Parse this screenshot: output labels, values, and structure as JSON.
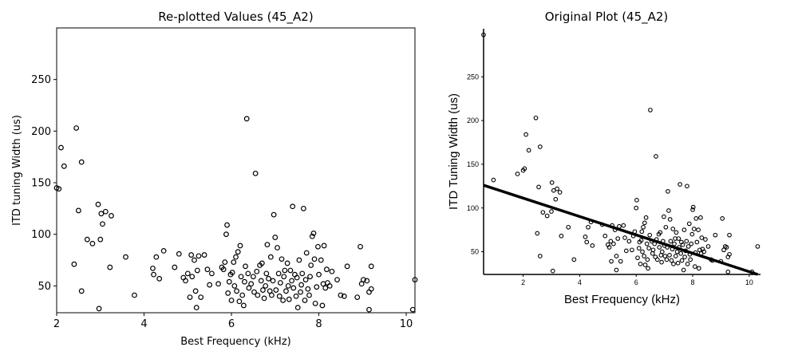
{
  "charts": {
    "left": {
      "title": "Re-plotted Values (45_A2)"
    },
    "right": {
      "title": "Original Plot (45_A2)"
    }
  },
  "chart_data": [
    {
      "type": "scatter",
      "title": "Re-plotted Values (45_A2)",
      "xlabel": "Best Frequency (kHz)",
      "ylabel": "ITD tuning Width (us)",
      "xlim": [
        2.0,
        10.2
      ],
      "ylim": [
        24,
        300
      ],
      "xticks": [
        2,
        4,
        6,
        8,
        10
      ],
      "yticks": [
        50,
        100,
        150,
        200,
        250
      ],
      "grid": false,
      "marker": "open-circle",
      "points": [
        [
          2.0,
          145
        ],
        [
          2.05,
          144
        ],
        [
          2.1,
          184
        ],
        [
          2.17,
          166
        ],
        [
          2.4,
          71
        ],
        [
          2.45,
          203
        ],
        [
          2.5,
          123
        ],
        [
          2.57,
          170
        ],
        [
          2.57,
          45
        ],
        [
          2.7,
          95
        ],
        [
          2.82,
          91
        ],
        [
          2.95,
          129
        ],
        [
          2.97,
          28
        ],
        [
          3.0,
          95
        ],
        [
          3.02,
          120
        ],
        [
          3.05,
          110
        ],
        [
          3.12,
          122
        ],
        [
          3.22,
          68
        ],
        [
          3.25,
          118
        ],
        [
          3.58,
          78
        ],
        [
          3.78,
          41
        ],
        [
          4.2,
          67
        ],
        [
          4.22,
          61
        ],
        [
          4.28,
          78
        ],
        [
          4.35,
          57
        ],
        [
          4.45,
          84
        ],
        [
          4.7,
          68
        ],
        [
          4.8,
          81
        ],
        [
          4.9,
          58
        ],
        [
          4.95,
          55
        ],
        [
          5.0,
          62
        ],
        [
          5.05,
          39
        ],
        [
          5.08,
          80
        ],
        [
          5.1,
          59
        ],
        [
          5.15,
          75
        ],
        [
          5.18,
          45
        ],
        [
          5.2,
          29
        ],
        [
          5.22,
          65
        ],
        [
          5.25,
          79
        ],
        [
          5.3,
          39
        ],
        [
          5.38,
          80
        ],
        [
          5.45,
          66
        ],
        [
          5.5,
          51
        ],
        [
          5.55,
          62
        ],
        [
          5.7,
          52
        ],
        [
          5.78,
          68
        ],
        [
          5.82,
          66
        ],
        [
          5.85,
          73
        ],
        [
          5.88,
          100
        ],
        [
          5.9,
          109
        ],
        [
          5.92,
          43
        ],
        [
          5.95,
          54
        ],
        [
          5.98,
          61
        ],
        [
          6.0,
          36
        ],
        [
          6.02,
          63
        ],
        [
          6.05,
          73
        ],
        [
          6.07,
          50
        ],
        [
          6.1,
          78
        ],
        [
          6.12,
          45
        ],
        [
          6.15,
          83
        ],
        [
          6.18,
          35
        ],
        [
          6.2,
          89
        ],
        [
          6.22,
          59
        ],
        [
          6.25,
          41
        ],
        [
          6.28,
          31
        ],
        [
          6.3,
          54
        ],
        [
          6.32,
          69
        ],
        [
          6.35,
          212
        ],
        [
          6.38,
          62
        ],
        [
          6.4,
          48
        ],
        [
          6.45,
          52
        ],
        [
          6.5,
          59
        ],
        [
          6.52,
          44
        ],
        [
          6.55,
          159
        ],
        [
          6.58,
          64
        ],
        [
          6.6,
          41
        ],
        [
          6.65,
          70
        ],
        [
          6.68,
          55
        ],
        [
          6.7,
          72
        ],
        [
          6.72,
          46
        ],
        [
          6.75,
          38
        ],
        [
          6.78,
          50
        ],
        [
          6.8,
          62
        ],
        [
          6.82,
          90
        ],
        [
          6.85,
          57
        ],
        [
          6.88,
          45
        ],
        [
          6.9,
          78
        ],
        [
          6.92,
          41
        ],
        [
          6.95,
          55
        ],
        [
          6.97,
          119
        ],
        [
          7.0,
          97
        ],
        [
          7.02,
          46
        ],
        [
          7.05,
          87
        ],
        [
          7.08,
          62
        ],
        [
          7.1,
          40
        ],
        [
          7.12,
          53
        ],
        [
          7.15,
          76
        ],
        [
          7.18,
          36
        ],
        [
          7.2,
          59
        ],
        [
          7.22,
          65
        ],
        [
          7.25,
          45
        ],
        [
          7.28,
          72
        ],
        [
          7.3,
          50
        ],
        [
          7.32,
          37
        ],
        [
          7.35,
          65
        ],
        [
          7.38,
          55
        ],
        [
          7.4,
          127
        ],
        [
          7.42,
          48
        ],
        [
          7.45,
          61
        ],
        [
          7.48,
          40
        ],
        [
          7.5,
          58
        ],
        [
          7.52,
          29
        ],
        [
          7.55,
          75
        ],
        [
          7.58,
          44
        ],
        [
          7.6,
          51
        ],
        [
          7.62,
          62
        ],
        [
          7.65,
          125
        ],
        [
          7.68,
          36
        ],
        [
          7.7,
          56
        ],
        [
          7.72,
          82
        ],
        [
          7.75,
          47
        ],
        [
          7.78,
          41
        ],
        [
          7.8,
          59
        ],
        [
          7.82,
          70
        ],
        [
          7.85,
          98
        ],
        [
          7.88,
          101
        ],
        [
          7.9,
          76
        ],
        [
          7.92,
          33
        ],
        [
          7.95,
          49
        ],
        [
          7.98,
          88
        ],
        [
          8.0,
          61
        ],
        [
          8.05,
          75
        ],
        [
          8.08,
          31
        ],
        [
          8.1,
          52
        ],
        [
          8.12,
          89
        ],
        [
          8.15,
          48
        ],
        [
          8.18,
          66
        ],
        [
          8.2,
          53
        ],
        [
          8.25,
          50
        ],
        [
          8.3,
          64
        ],
        [
          8.42,
          56
        ],
        [
          8.5,
          41
        ],
        [
          8.58,
          40
        ],
        [
          8.65,
          69
        ],
        [
          8.88,
          39
        ],
        [
          8.95,
          88
        ],
        [
          8.98,
          52
        ],
        [
          9.02,
          56
        ],
        [
          9.1,
          55
        ],
        [
          9.15,
          27
        ],
        [
          9.15,
          44
        ],
        [
          9.2,
          69
        ],
        [
          9.2,
          47
        ],
        [
          10.15,
          27
        ],
        [
          10.2,
          56
        ]
      ]
    },
    {
      "type": "scatter",
      "title": "Original Plot (45_A2)",
      "xlabel": "Best Frequency (kHz)",
      "ylabel": "ITD Tuning Width (us)",
      "xlim": [
        0.6,
        10.4
      ],
      "ylim": [
        24,
        305
      ],
      "xticks": [
        2,
        4,
        6,
        8,
        10
      ],
      "yticks": [
        50,
        100,
        150,
        200,
        250
      ],
      "grid": false,
      "marker": "open-circle",
      "fit_line": {
        "x": [
          0.6,
          10.3
        ],
        "y": [
          126,
          24
        ]
      },
      "points": [
        [
          0.6,
          298
        ],
        [
          0.95,
          132
        ],
        [
          1.8,
          139
        ],
        [
          2.0,
          143
        ],
        [
          2.05,
          145
        ],
        [
          2.1,
          184
        ],
        [
          2.2,
          166
        ],
        [
          2.45,
          203
        ],
        [
          2.5,
          71
        ],
        [
          2.55,
          124
        ],
        [
          2.6,
          45
        ],
        [
          2.6,
          170
        ],
        [
          2.7,
          95
        ],
        [
          2.85,
          91
        ],
        [
          3.0,
          96
        ],
        [
          3.02,
          129
        ],
        [
          3.05,
          28
        ],
        [
          3.08,
          120
        ],
        [
          3.15,
          110
        ],
        [
          3.2,
          122
        ],
        [
          3.3,
          118
        ],
        [
          3.35,
          68
        ],
        [
          3.6,
          78
        ],
        [
          3.8,
          41
        ],
        [
          4.2,
          67
        ],
        [
          4.25,
          61
        ],
        [
          4.3,
          78
        ],
        [
          4.4,
          84
        ],
        [
          4.45,
          57
        ],
        [
          4.8,
          81
        ],
        [
          4.9,
          68
        ],
        [
          5.0,
          58
        ],
        [
          5.05,
          55
        ],
        [
          5.1,
          62
        ],
        [
          5.12,
          39
        ],
        [
          5.15,
          80
        ],
        [
          5.2,
          59
        ],
        [
          5.25,
          75
        ],
        [
          5.3,
          45
        ],
        [
          5.3,
          29
        ],
        [
          5.35,
          65
        ],
        [
          5.4,
          79
        ],
        [
          5.45,
          39
        ],
        [
          5.55,
          80
        ],
        [
          5.6,
          66
        ],
        [
          5.65,
          51
        ],
        [
          5.75,
          62
        ],
        [
          5.85,
          52
        ],
        [
          5.9,
          68
        ],
        [
          5.95,
          73
        ],
        [
          6.0,
          100
        ],
        [
          6.02,
          109
        ],
        [
          6.05,
          43
        ],
        [
          6.1,
          54
        ],
        [
          6.12,
          61
        ],
        [
          6.15,
          36
        ],
        [
          6.18,
          63
        ],
        [
          6.2,
          73
        ],
        [
          6.22,
          50
        ],
        [
          6.25,
          78
        ],
        [
          6.28,
          45
        ],
        [
          6.3,
          83
        ],
        [
          6.32,
          35
        ],
        [
          6.35,
          89
        ],
        [
          6.38,
          59
        ],
        [
          6.4,
          41
        ],
        [
          6.42,
          31
        ],
        [
          6.45,
          54
        ],
        [
          6.48,
          69
        ],
        [
          6.5,
          212
        ],
        [
          6.55,
          62
        ],
        [
          6.58,
          48
        ],
        [
          6.6,
          52
        ],
        [
          6.65,
          59
        ],
        [
          6.68,
          44
        ],
        [
          6.7,
          159
        ],
        [
          6.72,
          64
        ],
        [
          6.75,
          41
        ],
        [
          6.8,
          70
        ],
        [
          6.82,
          55
        ],
        [
          6.85,
          72
        ],
        [
          6.88,
          46
        ],
        [
          6.9,
          38
        ],
        [
          6.92,
          50
        ],
        [
          6.95,
          62
        ],
        [
          6.98,
          90
        ],
        [
          7.0,
          57
        ],
        [
          7.02,
          45
        ],
        [
          7.05,
          78
        ],
        [
          7.08,
          41
        ],
        [
          7.1,
          55
        ],
        [
          7.12,
          119
        ],
        [
          7.15,
          97
        ],
        [
          7.18,
          46
        ],
        [
          7.2,
          87
        ],
        [
          7.22,
          62
        ],
        [
          7.25,
          40
        ],
        [
          7.28,
          53
        ],
        [
          7.3,
          76
        ],
        [
          7.32,
          36
        ],
        [
          7.35,
          59
        ],
        [
          7.38,
          65
        ],
        [
          7.4,
          45
        ],
        [
          7.42,
          72
        ],
        [
          7.45,
          50
        ],
        [
          7.48,
          37
        ],
        [
          7.5,
          65
        ],
        [
          7.52,
          55
        ],
        [
          7.55,
          127
        ],
        [
          7.58,
          48
        ],
        [
          7.6,
          61
        ],
        [
          7.62,
          40
        ],
        [
          7.65,
          58
        ],
        [
          7.68,
          29
        ],
        [
          7.7,
          75
        ],
        [
          7.72,
          44
        ],
        [
          7.75,
          51
        ],
        [
          7.78,
          62
        ],
        [
          7.8,
          125
        ],
        [
          7.82,
          36
        ],
        [
          7.85,
          56
        ],
        [
          7.88,
          82
        ],
        [
          7.9,
          47
        ],
        [
          7.92,
          41
        ],
        [
          7.95,
          59
        ],
        [
          7.98,
          70
        ],
        [
          8.0,
          98
        ],
        [
          8.02,
          101
        ],
        [
          8.05,
          76
        ],
        [
          8.08,
          33
        ],
        [
          8.1,
          49
        ],
        [
          8.12,
          88
        ],
        [
          8.15,
          61
        ],
        [
          8.2,
          75
        ],
        [
          8.22,
          31
        ],
        [
          8.25,
          52
        ],
        [
          8.28,
          89
        ],
        [
          8.3,
          48
        ],
        [
          8.32,
          66
        ],
        [
          8.35,
          53
        ],
        [
          8.4,
          50
        ],
        [
          8.45,
          64
        ],
        [
          8.55,
          56
        ],
        [
          8.65,
          41
        ],
        [
          8.7,
          40
        ],
        [
          8.8,
          69
        ],
        [
          9.0,
          39
        ],
        [
          9.05,
          88
        ],
        [
          9.1,
          52
        ],
        [
          9.15,
          56
        ],
        [
          9.2,
          55
        ],
        [
          9.25,
          27
        ],
        [
          9.25,
          44
        ],
        [
          9.3,
          69
        ],
        [
          9.3,
          47
        ],
        [
          10.1,
          27
        ],
        [
          10.3,
          56
        ]
      ]
    }
  ]
}
